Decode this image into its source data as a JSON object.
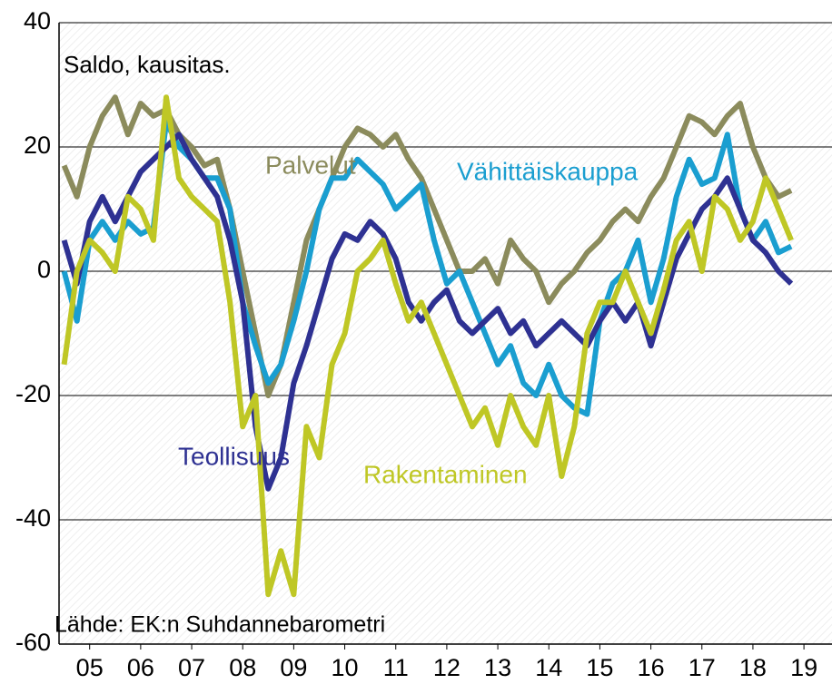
{
  "chart_data": {
    "type": "line",
    "title": "Saldo, kausitas.",
    "source": "Lähde: EK:n Suhdannebarometri",
    "x": [
      2005,
      2005.25,
      2005.5,
      2005.75,
      2006,
      2006.25,
      2006.5,
      2006.75,
      2007,
      2007.25,
      2007.5,
      2007.75,
      2008,
      2008.25,
      2008.5,
      2008.75,
      2009,
      2009.25,
      2009.5,
      2009.75,
      2010,
      2010.25,
      2010.5,
      2010.75,
      2011,
      2011.25,
      2011.5,
      2011.75,
      2012,
      2012.25,
      2012.5,
      2012.75,
      2013,
      2013.25,
      2013.5,
      2013.75,
      2014,
      2014.25,
      2014.5,
      2014.75,
      2015,
      2015.25,
      2015.5,
      2015.75,
      2016,
      2016.25,
      2016.5,
      2016.75,
      2017,
      2017.25,
      2017.5,
      2017.75,
      2018,
      2018.25,
      2018.5,
      2018.75,
      2019,
      2019.25
    ],
    "series": [
      {
        "name": "Palvelut",
        "color": "#8b8b5c",
        "values": [
          17,
          12,
          20,
          25,
          28,
          22,
          27,
          25,
          26,
          22,
          20,
          17,
          18,
          10,
          0,
          -10,
          -20,
          -15,
          -5,
          5,
          10,
          15,
          20,
          23,
          22,
          20,
          22,
          18,
          15,
          10,
          5,
          0,
          0,
          2,
          -2,
          5,
          2,
          0,
          -5,
          -2,
          0,
          3,
          5,
          8,
          10,
          8,
          12,
          15,
          20,
          25,
          24,
          22,
          25,
          27,
          20,
          15,
          12,
          13
        ]
      },
      {
        "name": "Vähittäiskauppa",
        "color": "#1a9ed0",
        "values": [
          0,
          -8,
          5,
          8,
          5,
          8,
          6,
          7,
          24,
          20,
          18,
          15,
          15,
          10,
          -5,
          -12,
          -18,
          -15,
          -8,
          0,
          10,
          15,
          15,
          18,
          16,
          14,
          10,
          12,
          14,
          5,
          -2,
          0,
          -5,
          -10,
          -15,
          -12,
          -18,
          -20,
          -15,
          -20,
          -22,
          -23,
          -8,
          -2,
          0,
          5,
          -5,
          2,
          12,
          18,
          14,
          15,
          22,
          10,
          5,
          8,
          3,
          4
        ]
      },
      {
        "name": "Teollisuus",
        "color": "#2e3192",
        "values": [
          5,
          -2,
          8,
          12,
          8,
          12,
          16,
          18,
          20,
          22,
          18,
          15,
          12,
          5,
          -5,
          -25,
          -35,
          -30,
          -18,
          -12,
          -5,
          2,
          6,
          5,
          8,
          6,
          2,
          -5,
          -8,
          -5,
          -3,
          -8,
          -10,
          -8,
          -6,
          -10,
          -8,
          -12,
          -10,
          -8,
          -10,
          -12,
          -8,
          -5,
          -8,
          -5,
          -12,
          -5,
          2,
          6,
          10,
          12,
          15,
          10,
          5,
          3,
          0,
          -2
        ]
      },
      {
        "name": "Rakentaminen",
        "color": "#bfc725",
        "values": [
          -15,
          0,
          5,
          3,
          0,
          12,
          10,
          5,
          28,
          15,
          12,
          10,
          8,
          -5,
          -25,
          -20,
          -52,
          -45,
          -52,
          -25,
          -30,
          -15,
          -10,
          0,
          2,
          5,
          -2,
          -8,
          -5,
          -10,
          -15,
          -20,
          -25,
          -22,
          -28,
          -20,
          -25,
          -28,
          -20,
          -33,
          -25,
          -10,
          -5,
          -5,
          0,
          -5,
          -10,
          -3,
          5,
          8,
          0,
          12,
          10,
          5,
          8,
          15,
          10,
          5
        ]
      }
    ],
    "xlim": [
      2004.9,
      2020.05
    ],
    "xticks": [
      {
        "value": 2005.5,
        "label": "05"
      },
      {
        "value": 2006.5,
        "label": "06"
      },
      {
        "value": 2007.5,
        "label": "07"
      },
      {
        "value": 2008.5,
        "label": "08"
      },
      {
        "value": 2009.5,
        "label": "09"
      },
      {
        "value": 2010.5,
        "label": "10"
      },
      {
        "value": 2011.5,
        "label": "11"
      },
      {
        "value": 2012.5,
        "label": "12"
      },
      {
        "value": 2013.5,
        "label": "13"
      },
      {
        "value": 2014.5,
        "label": "14"
      },
      {
        "value": 2015.5,
        "label": "15"
      },
      {
        "value": 2016.5,
        "label": "16"
      },
      {
        "value": 2017.5,
        "label": "17"
      },
      {
        "value": 2018.5,
        "label": "18"
      },
      {
        "value": 2019.5,
        "label": "19"
      }
    ],
    "ylim": [
      -60,
      40
    ],
    "yticks": [
      -60,
      -40,
      -20,
      0,
      20,
      40
    ],
    "grid": true
  }
}
